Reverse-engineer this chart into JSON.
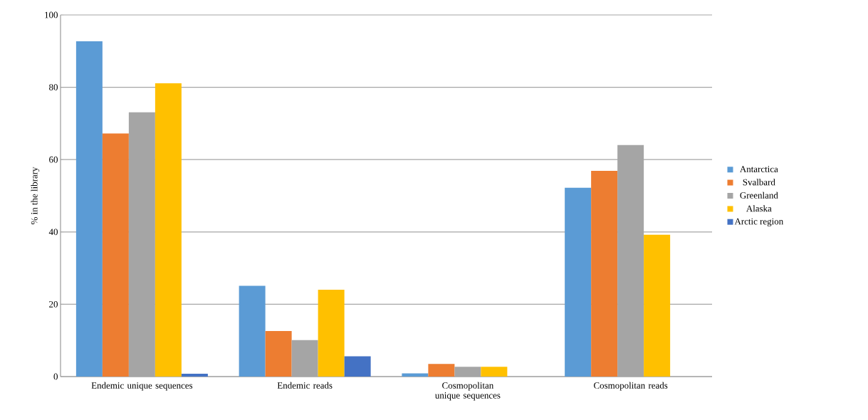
{
  "chart_data": {
    "type": "bar",
    "ylabel": "% in the library",
    "categories": [
      "Endemic unique sequences",
      "Endemic reads",
      "Cosmopolitan unique sequences",
      "Cosmopolitan reads"
    ],
    "series": [
      {
        "name": "Antarctica",
        "color": "#5b9bd5",
        "values": [
          92.7,
          25.1,
          0.9,
          52.2
        ]
      },
      {
        "name": "Svalbard",
        "color": "#ed7d31",
        "values": [
          67.2,
          12.6,
          3.5,
          56.9
        ]
      },
      {
        "name": "Greenland",
        "color": "#a5a5a5",
        "values": [
          73.1,
          10.1,
          2.7,
          64.0
        ]
      },
      {
        "name": "Alaska",
        "color": "#ffc000",
        "values": [
          81.1,
          24.0,
          2.7,
          39.2
        ]
      },
      {
        "name": "Arctic region",
        "color": "#4472c4",
        "values": [
          0.8,
          5.6,
          null,
          null
        ]
      }
    ],
    "ylim": [
      0,
      100
    ],
    "yticks": [
      0,
      20,
      40,
      60,
      80,
      100
    ],
    "grid": "y",
    "legend": "right"
  }
}
